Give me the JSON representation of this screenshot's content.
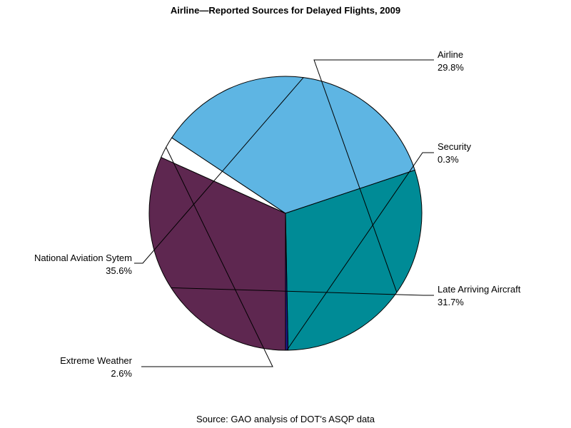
{
  "chart_data": {
    "type": "pie",
    "title": "Airline—Reported Sources for Delayed Flights, 2009",
    "footnote": "Source: GAO analysis of DOT's ASQP data",
    "slices": [
      {
        "label": "Late Arriving Aircraft",
        "value": 31.7,
        "value_label": "31.7%",
        "color": "#5e2750"
      },
      {
        "label": "Extreme Weather",
        "value": 2.6,
        "value_label": "2.6%",
        "color": "#ffffff"
      },
      {
        "label": "National Aviation Sytem",
        "value": 35.6,
        "value_label": "35.6%",
        "color": "#5eb5e3"
      },
      {
        "label": "Airline",
        "value": 29.8,
        "value_label": "29.8%",
        "color": "#008b96"
      },
      {
        "label": "Security",
        "value": 0.3,
        "value_label": "0.3%",
        "color": "#1a1a8c"
      }
    ]
  }
}
